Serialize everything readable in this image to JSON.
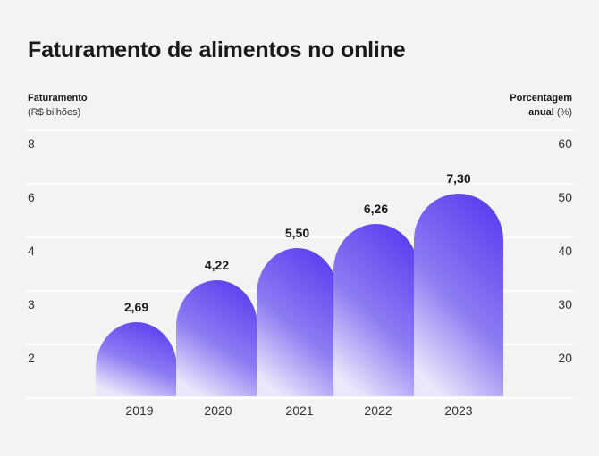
{
  "title": "Faturamento de alimentos no online",
  "left_axis": {
    "label_line1": "Faturamento",
    "label_line2": "(R$ bilhões)"
  },
  "right_axis": {
    "label_line1": "Porcentagem",
    "label_line2_bold": "anual",
    "label_line2_rest": " (%)"
  },
  "colors": {
    "bar_top": "#5b3ef0",
    "bar_bottom": "#ece8fb",
    "grid": "#ffffff",
    "background": "#f3f3f3"
  },
  "chart_data": {
    "type": "bar",
    "categories": [
      "2019",
      "2020",
      "2021",
      "2022",
      "2023"
    ],
    "values": [
      2.69,
      4.22,
      5.5,
      6.26,
      7.3
    ],
    "data_labels": [
      "2,69",
      "4,22",
      "5,50",
      "6,26",
      "7,30"
    ],
    "y_left_ticks": [
      "8",
      "6",
      "4",
      "3",
      "2"
    ],
    "y_right_ticks": [
      "60",
      "50",
      "40",
      "30",
      "20"
    ],
    "ylim": [
      0,
      8
    ],
    "grid": true
  }
}
